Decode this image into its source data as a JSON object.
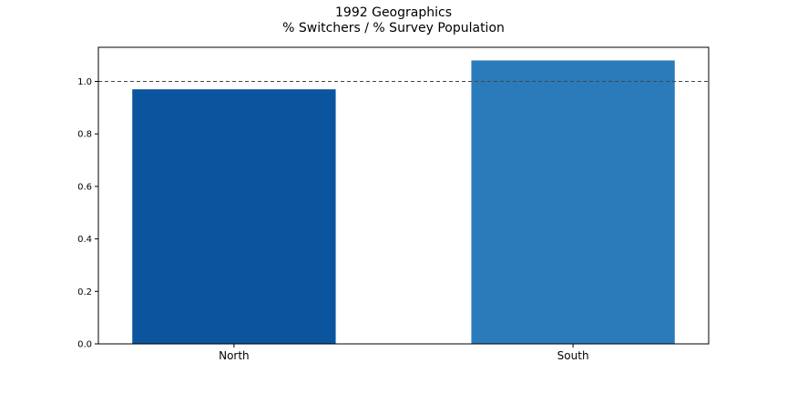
{
  "chart_data": {
    "type": "bar",
    "title": "1992 Geographics",
    "subtitle": "% Switchers / % Survey Population",
    "categories": [
      "North",
      "South"
    ],
    "values": [
      0.97,
      1.08
    ],
    "colors": [
      "#0b559f",
      "#2b7bba"
    ],
    "ylim": [
      0,
      1.13
    ],
    "yticks": [
      "0.0",
      "0.2",
      "0.4",
      "0.6",
      "0.8",
      "1.0"
    ],
    "reference_line": 1.0,
    "grid": false
  }
}
